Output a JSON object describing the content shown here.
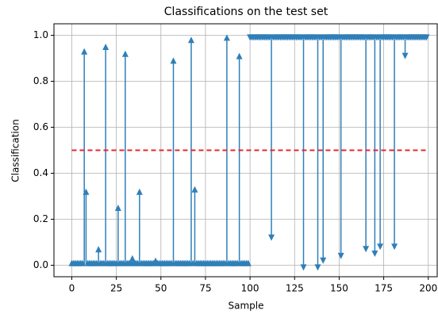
{
  "chart_data": {
    "type": "arrow-stem",
    "title": "Classifications on the test set",
    "x_label": "Sample",
    "y_label": "Classification",
    "xlim": [
      -10,
      205
    ],
    "ylim": [
      -0.05,
      1.05
    ],
    "xticks": [
      0,
      25,
      50,
      75,
      100,
      125,
      150,
      175,
      200
    ],
    "yticks": [
      {
        "value": 0,
        "label": "0.0"
      },
      0.2,
      0.4,
      0.6,
      0.8,
      {
        "value": 1,
        "label": "1.0"
      }
    ],
    "grid": true,
    "threshold": 0.5,
    "threshold_color": "#e8262a",
    "series": [
      {
        "color": "#2f7fb8",
        "marker": "up",
        "baseline": 0,
        "x": [
          0,
          1,
          2,
          3,
          4,
          5,
          6,
          7,
          8,
          9,
          10,
          11,
          12,
          13,
          14,
          15,
          16,
          17,
          18,
          19,
          20,
          21,
          22,
          23,
          24,
          25,
          26,
          27,
          28,
          29,
          30,
          31,
          32,
          33,
          34,
          35,
          36,
          37,
          38,
          39,
          40,
          41,
          42,
          43,
          44,
          45,
          46,
          47,
          48,
          49,
          50,
          51,
          52,
          53,
          54,
          55,
          56,
          57,
          58,
          59,
          60,
          61,
          62,
          63,
          64,
          65,
          66,
          67,
          68,
          69,
          70,
          71,
          72,
          73,
          74,
          75,
          76,
          77,
          78,
          79,
          80,
          81,
          82,
          83,
          84,
          85,
          86,
          87,
          88,
          89,
          90,
          91,
          92,
          93,
          94,
          95,
          96,
          97,
          98,
          99
        ],
        "values": [
          0.01,
          0.01,
          0.01,
          0.01,
          0.01,
          0.01,
          0.01,
          0.93,
          0.32,
          0.01,
          0.01,
          0.01,
          0.01,
          0.01,
          0.01,
          0.07,
          0.01,
          0.01,
          0.01,
          0.95,
          0.01,
          0.01,
          0.01,
          0.01,
          0.01,
          0.01,
          0.25,
          0.01,
          0.01,
          0.01,
          0.92,
          0.01,
          0.01,
          0.01,
          0.03,
          0.01,
          0.01,
          0.01,
          0.32,
          0.01,
          0.01,
          0.01,
          0.01,
          0.01,
          0.01,
          0.01,
          0.01,
          0.02,
          0.01,
          0.01,
          0.01,
          0.01,
          0.01,
          0.01,
          0.01,
          0.01,
          0.01,
          0.89,
          0.01,
          0.01,
          0.01,
          0.01,
          0.01,
          0.01,
          0.01,
          0.01,
          0.01,
          0.98,
          0.01,
          0.33,
          0.01,
          0.01,
          0.01,
          0.01,
          0.01,
          0.01,
          0.01,
          0.01,
          0.01,
          0.01,
          0.01,
          0.01,
          0.01,
          0.01,
          0.01,
          0.01,
          0.01,
          0.99,
          0.01,
          0.01,
          0.01,
          0.01,
          0.01,
          0.01,
          0.91,
          0.01,
          0.01,
          0.01,
          0.01,
          0.01
        ]
      },
      {
        "color": "#2f7fb8",
        "marker": "down",
        "baseline": 1,
        "x": [
          100,
          101,
          102,
          103,
          104,
          105,
          106,
          107,
          108,
          109,
          110,
          111,
          112,
          113,
          114,
          115,
          116,
          117,
          118,
          119,
          120,
          121,
          122,
          123,
          124,
          125,
          126,
          127,
          128,
          129,
          130,
          131,
          132,
          133,
          134,
          135,
          136,
          137,
          138,
          139,
          140,
          141,
          142,
          143,
          144,
          145,
          146,
          147,
          148,
          149,
          150,
          151,
          152,
          153,
          154,
          155,
          156,
          157,
          158,
          159,
          160,
          161,
          162,
          163,
          164,
          165,
          166,
          167,
          168,
          169,
          170,
          171,
          172,
          173,
          174,
          175,
          176,
          177,
          178,
          179,
          180,
          181,
          182,
          183,
          184,
          185,
          186,
          187,
          188,
          189,
          190,
          191,
          192,
          193,
          194,
          195,
          196,
          197,
          198,
          199
        ],
        "values": [
          0.99,
          0.99,
          0.99,
          0.99,
          0.99,
          0.99,
          0.99,
          0.99,
          0.99,
          0.99,
          0.99,
          0.99,
          0.12,
          0.99,
          0.99,
          0.99,
          0.99,
          0.99,
          0.99,
          0.99,
          0.99,
          0.99,
          0.99,
          0.99,
          0.99,
          0.99,
          0.99,
          0.99,
          0.99,
          0.99,
          -0.01,
          0.99,
          0.99,
          0.99,
          0.99,
          0.99,
          0.99,
          0.99,
          -0.01,
          0.99,
          0.99,
          0.02,
          0.99,
          0.99,
          0.99,
          0.99,
          0.99,
          0.99,
          0.99,
          0.99,
          0.99,
          0.04,
          0.99,
          0.99,
          0.99,
          0.99,
          0.99,
          0.99,
          0.99,
          0.99,
          0.99,
          0.99,
          0.99,
          0.99,
          0.99,
          0.07,
          0.99,
          0.99,
          0.99,
          0.99,
          0.05,
          0.99,
          0.99,
          0.08,
          0.99,
          0.99,
          0.99,
          0.99,
          0.99,
          0.99,
          0.99,
          0.08,
          0.99,
          0.99,
          0.99,
          0.99,
          0.99,
          0.91,
          0.99,
          0.99,
          0.99,
          0.99,
          0.99,
          0.99,
          0.99,
          0.99,
          0.99,
          0.99,
          0.99,
          0.99
        ]
      }
    ]
  }
}
